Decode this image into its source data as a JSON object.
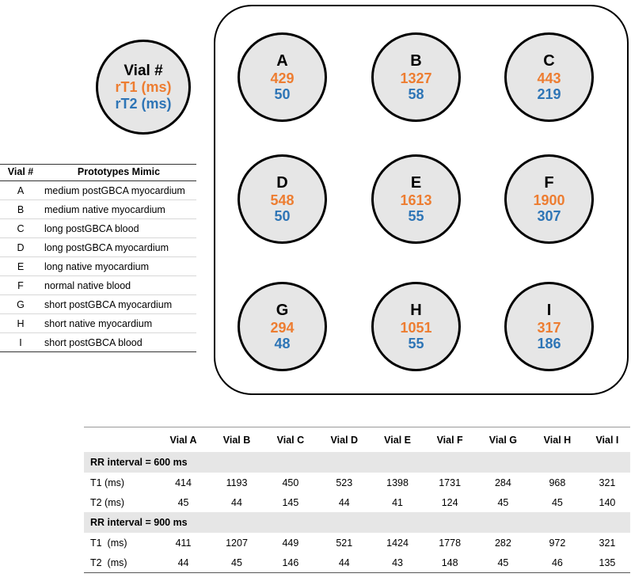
{
  "legend": {
    "label_vial": "Vial #",
    "label_t1": "rT1 (ms)",
    "label_t2": "rT2 (ms)"
  },
  "colors": {
    "t1": "#ed7d31",
    "t2": "#2e75b6",
    "vial_fill": "#e6e6e6"
  },
  "vials": [
    {
      "id": "A",
      "t1": "429",
      "t2": "50"
    },
    {
      "id": "B",
      "t1": "1327",
      "t2": "58"
    },
    {
      "id": "C",
      "t1": "443",
      "t2": "219"
    },
    {
      "id": "D",
      "t1": "548",
      "t2": "50"
    },
    {
      "id": "E",
      "t1": "1613",
      "t2": "55"
    },
    {
      "id": "F",
      "t1": "1900",
      "t2": "307"
    },
    {
      "id": "G",
      "t1": "294",
      "t2": "48"
    },
    {
      "id": "H",
      "t1": "1051",
      "t2": "55"
    },
    {
      "id": "I",
      "t1": "317",
      "t2": "186"
    }
  ],
  "prototypes": {
    "headers": [
      "Vial #",
      "Prototypes Mimic"
    ],
    "rows": [
      [
        "A",
        "medium postGBCA myocardium"
      ],
      [
        "B",
        "medium native myocardium"
      ],
      [
        "C",
        "long postGBCA blood"
      ],
      [
        "D",
        "long postGBCA myocardium"
      ],
      [
        "E",
        "long native myocardium"
      ],
      [
        "F",
        "normal native blood"
      ],
      [
        "G",
        "short postGBCA myocardium"
      ],
      [
        "H",
        "short native myocardium"
      ],
      [
        "I",
        "short postGBCA blood"
      ]
    ]
  },
  "measurements": {
    "columns": [
      "Vial A",
      "Vial B",
      "Vial C",
      "Vial D",
      "Vial E",
      "Vial F",
      "Vial G",
      "Vial H",
      "Vial I"
    ],
    "groups": [
      {
        "title": "RR interval = 600 ms",
        "rows": [
          {
            "label": "T1 (ms)",
            "values": [
              "414",
              "1193",
              "450",
              "523",
              "1398",
              "1731",
              "284",
              "968",
              "321"
            ]
          },
          {
            "label": "T2 (ms)",
            "values": [
              "45",
              "44",
              "145",
              "44",
              "41",
              "124",
              "45",
              "45",
              "140"
            ]
          }
        ]
      },
      {
        "title": "RR interval = 900 ms",
        "rows": [
          {
            "label": "T1  (ms)",
            "values": [
              "411",
              "1207",
              "449",
              "521",
              "1424",
              "1778",
              "282",
              "972",
              "321"
            ]
          },
          {
            "label": "T2  (ms)",
            "values": [
              "44",
              "45",
              "146",
              "44",
              "43",
              "148",
              "45",
              "46",
              "135"
            ]
          }
        ]
      }
    ]
  }
}
